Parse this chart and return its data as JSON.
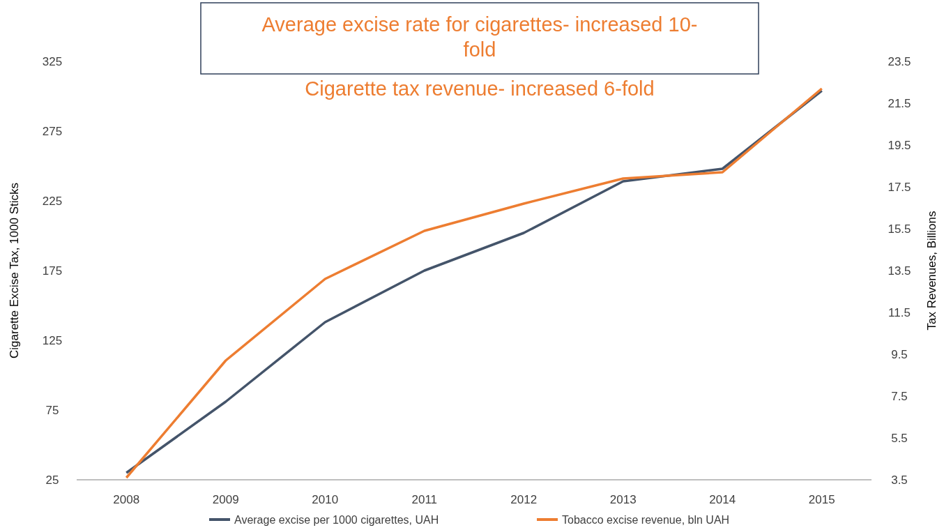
{
  "chart_data": {
    "type": "line",
    "title": "Average excise rate for cigarettes- increased 10-fold",
    "subtitle": "Cigarette tax revenue- increased 6-fold",
    "ylabel": "Cigarette Excise Tax, 1000 Sticks",
    "y2label": "Tax Revenues, Billions",
    "categories": [
      "2008",
      "2009",
      "2010",
      "2011",
      "2012",
      "2013",
      "2014",
      "2015"
    ],
    "series": [
      {
        "name": "Average excise per 1000 cigarettes, UAH",
        "color": "#44546a",
        "values": [
          30,
          81,
          138,
          175,
          202,
          239,
          248,
          304
        ]
      },
      {
        "name": "Tobacco excise revenue, bln UAH",
        "color": "#ed7d31",
        "axis": "y2",
        "values": [
          3.6,
          9.2,
          13.1,
          15.4,
          16.7,
          17.9,
          18.2,
          22.2
        ]
      }
    ],
    "ylim": [
      25,
      325
    ],
    "yticks": [
      25,
      75,
      125,
      175,
      225,
      275,
      325
    ],
    "y2lim": [
      3.5,
      23.5
    ],
    "y2ticks": [
      3.5,
      5.5,
      7.5,
      9.5,
      11.5,
      13.5,
      15.5,
      17.5,
      19.5,
      21.5,
      23.5
    ],
    "grid": false,
    "legend": "bottom",
    "marker": "none",
    "line_style": "solid"
  }
}
